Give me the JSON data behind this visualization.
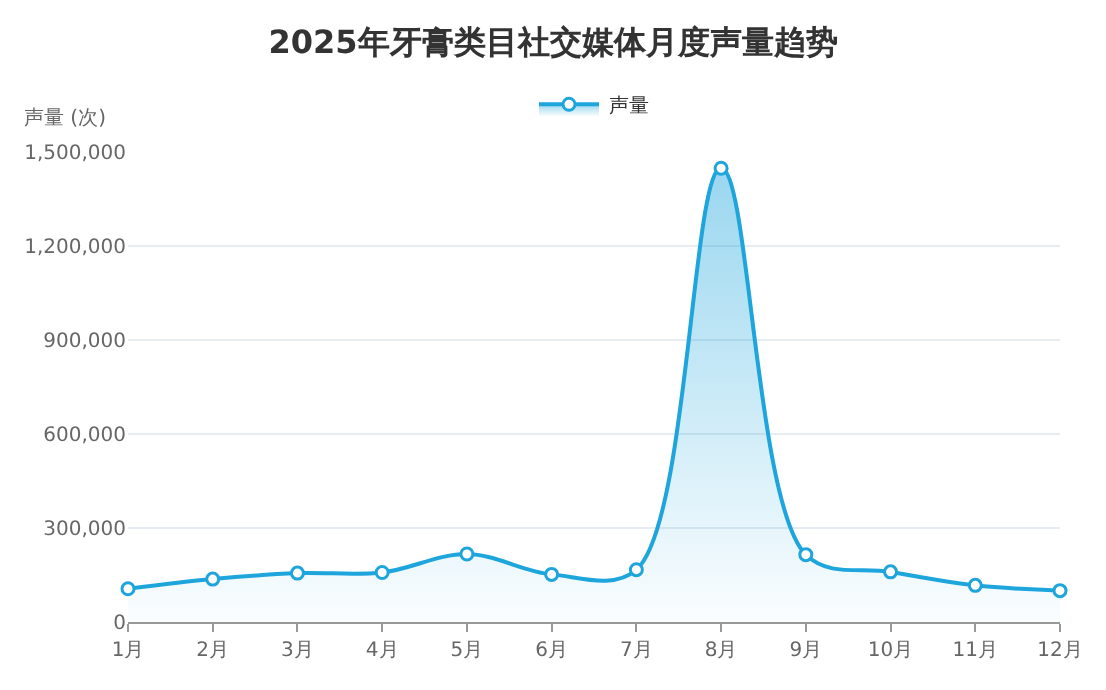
{
  "chart_data": {
    "type": "area",
    "title": "2025年牙膏类目社交媒体月度声量趋势",
    "ylabel": "声量 (次)",
    "categories": [
      "1月",
      "2月",
      "3月",
      "4月",
      "5月",
      "6月",
      "7月",
      "8月",
      "9月",
      "10月",
      "11月",
      "12月"
    ],
    "series": [
      {
        "name": "声量",
        "color": "#1ea5dc",
        "values": [
          106000,
          137000,
          156000,
          158000,
          217000,
          152000,
          167000,
          1448000,
          215000,
          160000,
          117000,
          100000
        ]
      }
    ],
    "ylim": [
      0,
      1500000
    ],
    "yticks": [
      {
        "value": 0,
        "label": "0"
      },
      {
        "value": 300000,
        "label": "300,000"
      },
      {
        "value": 600000,
        "label": "600,000"
      },
      {
        "value": 900000,
        "label": "900,000"
      },
      {
        "value": 1200000,
        "label": "1,200,000"
      },
      {
        "value": 1500000,
        "label": "1,500,000"
      }
    ],
    "grid": "y",
    "legend": "top",
    "marker": "circle",
    "line_style": "solid"
  }
}
